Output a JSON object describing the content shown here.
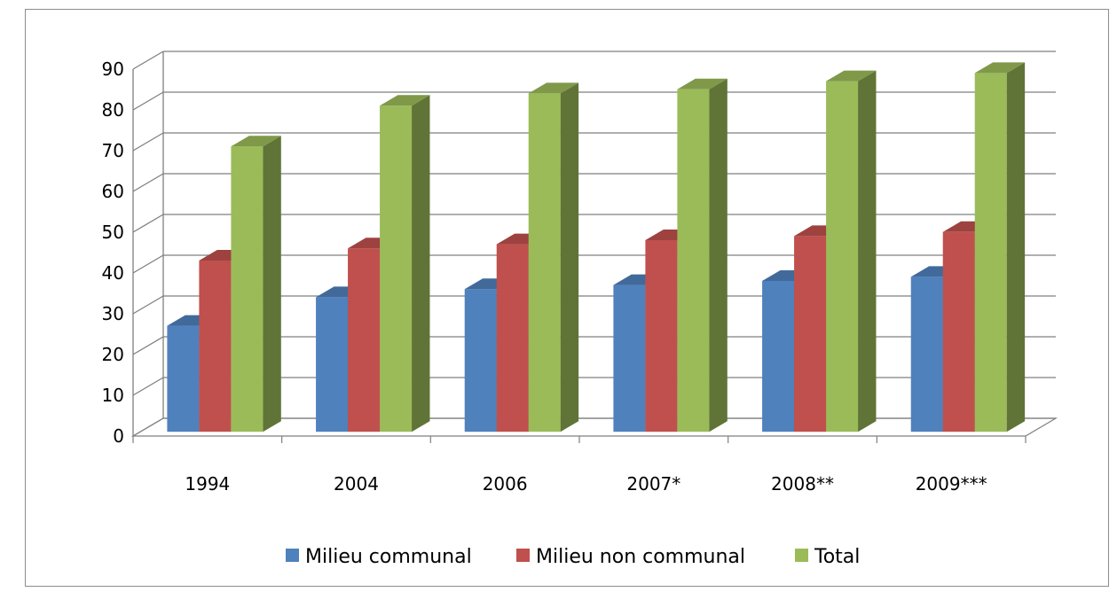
{
  "chart_data": {
    "type": "bar",
    "categories": [
      "1994",
      "2004",
      "2006",
      "2007*",
      "2008**",
      "2009***"
    ],
    "series": [
      {
        "name": "Milieu communal",
        "values": [
          26,
          33,
          35,
          36,
          37,
          38
        ],
        "color": "#4f81bd"
      },
      {
        "name": "Milieu non communal",
        "values": [
          42,
          45,
          46,
          47,
          48,
          49
        ],
        "color": "#c0504d"
      },
      {
        "name": "Total",
        "values": [
          70,
          80,
          83,
          84,
          86,
          88
        ],
        "color": "#9bbb59"
      }
    ],
    "title": "",
    "xlabel": "",
    "ylabel": "",
    "ylim": [
      0,
      90
    ],
    "yticks": [
      0,
      10,
      20,
      30,
      40,
      50,
      60,
      70,
      80,
      90
    ],
    "grid": true,
    "legend_position": "bottom",
    "style": "3d-clustered-column"
  }
}
